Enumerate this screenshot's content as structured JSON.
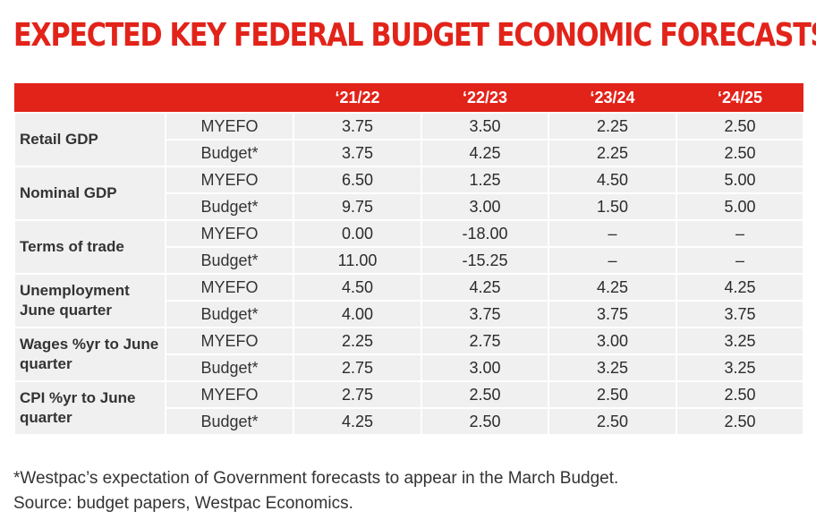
{
  "title": "EXPECTED KEY FEDERAL BUDGET ECONOMIC FORECASTS",
  "header": [
    "",
    "",
    "‘21/22",
    "‘22/23",
    "‘23/24",
    "‘24/25"
  ],
  "groups": [
    {
      "label": "Retail GDP",
      "rows": [
        {
          "type": "MYEFO",
          "values": [
            "3.75",
            "3.50",
            "2.25",
            "2.50"
          ]
        },
        {
          "type": "Budget*",
          "values": [
            "3.75",
            "4.25",
            "2.25",
            "2.50"
          ]
        }
      ]
    },
    {
      "label": "Nominal GDP",
      "rows": [
        {
          "type": "MYEFO",
          "values": [
            "6.50",
            "1.25",
            "4.50",
            "5.00"
          ]
        },
        {
          "type": "Budget*",
          "values": [
            "9.75",
            "3.00",
            "1.50",
            "5.00"
          ]
        }
      ]
    },
    {
      "label": "Terms of trade",
      "rows": [
        {
          "type": "MYEFO",
          "values": [
            "0.00",
            "-18.00",
            "–",
            "–"
          ]
        },
        {
          "type": "Budget*",
          "values": [
            "11.00",
            "-15.25",
            "–",
            "–"
          ]
        }
      ]
    },
    {
      "label": "Unemployment June quarter",
      "rows": [
        {
          "type": "MYEFO",
          "values": [
            "4.50",
            "4.25",
            "4.25",
            "4.25"
          ]
        },
        {
          "type": "Budget*",
          "values": [
            "4.00",
            "3.75",
            "3.75",
            "3.75"
          ]
        }
      ]
    },
    {
      "label": "Wages %yr to June quarter",
      "rows": [
        {
          "type": "MYEFO",
          "values": [
            "2.25",
            "2.75",
            "3.00",
            "3.25"
          ]
        },
        {
          "type": "Budget*",
          "values": [
            "2.75",
            "3.00",
            "3.25",
            "3.25"
          ]
        }
      ]
    },
    {
      "label": "CPI %yr to June quarter",
      "rows": [
        {
          "type": "MYEFO",
          "values": [
            "2.75",
            "2.50",
            "2.50",
            "2.50"
          ]
        },
        {
          "type": "Budget*",
          "values": [
            "4.25",
            "2.50",
            "2.50",
            "2.50"
          ]
        }
      ]
    }
  ],
  "footnote": {
    "line1": "*Westpac’s expectation of Government forecasts to appear in the March Budget.",
    "line2": "Source: budget papers, Westpac Economics."
  }
}
